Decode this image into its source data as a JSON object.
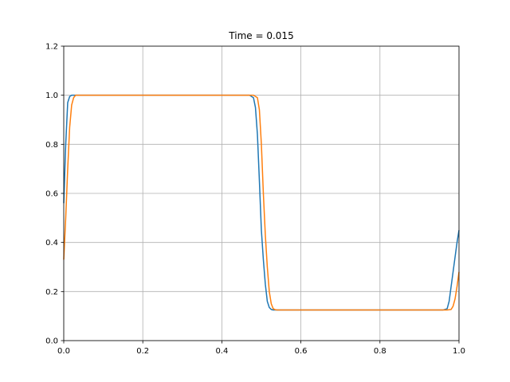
{
  "chart_data": {
    "type": "line",
    "title": "Time = 0.015",
    "xlabel": "",
    "ylabel": "",
    "xlim": [
      0.0,
      1.0
    ],
    "ylim": [
      0.0,
      1.2
    ],
    "xticks": [
      "0.0",
      "0.2",
      "0.4",
      "0.6",
      "0.8",
      "1.0"
    ],
    "yticks": [
      "0.0",
      "0.2",
      "0.4",
      "0.6",
      "0.8",
      "1.0",
      "1.2"
    ],
    "grid": true,
    "series": [
      {
        "color": "#1f77b4",
        "x": [
          0.0,
          0.005,
          0.01,
          0.015,
          0.02,
          0.03,
          0.1,
          0.2,
          0.3,
          0.4,
          0.47,
          0.48,
          0.485,
          0.49,
          0.495,
          0.5,
          0.505,
          0.51,
          0.515,
          0.52,
          0.525,
          0.53,
          0.54,
          0.6,
          0.7,
          0.8,
          0.9,
          0.96,
          0.97,
          0.975,
          0.98,
          0.985,
          0.99,
          0.995,
          1.0
        ],
        "y": [
          0.56,
          0.8,
          0.97,
          0.995,
          1.0,
          1.0,
          1.0,
          1.0,
          1.0,
          1.0,
          1.0,
          0.99,
          0.95,
          0.84,
          0.65,
          0.45,
          0.33,
          0.23,
          0.16,
          0.135,
          0.127,
          0.125,
          0.125,
          0.125,
          0.125,
          0.125,
          0.125,
          0.125,
          0.13,
          0.16,
          0.22,
          0.28,
          0.34,
          0.4,
          0.45
        ]
      },
      {
        "color": "#ff7f0e",
        "x": [
          0.0,
          0.005,
          0.01,
          0.015,
          0.02,
          0.025,
          0.03,
          0.035,
          0.1,
          0.2,
          0.3,
          0.4,
          0.48,
          0.49,
          0.495,
          0.5,
          0.505,
          0.51,
          0.515,
          0.52,
          0.525,
          0.53,
          0.535,
          0.54,
          0.55,
          0.6,
          0.7,
          0.8,
          0.9,
          0.97,
          0.98,
          0.985,
          0.99,
          0.995,
          1.0
        ],
        "y": [
          0.33,
          0.5,
          0.7,
          0.87,
          0.96,
          0.99,
          1.0,
          1.0,
          1.0,
          1.0,
          1.0,
          1.0,
          1.0,
          0.99,
          0.94,
          0.8,
          0.6,
          0.43,
          0.3,
          0.2,
          0.15,
          0.13,
          0.126,
          0.125,
          0.125,
          0.125,
          0.125,
          0.125,
          0.125,
          0.125,
          0.127,
          0.14,
          0.17,
          0.22,
          0.28
        ]
      }
    ]
  }
}
